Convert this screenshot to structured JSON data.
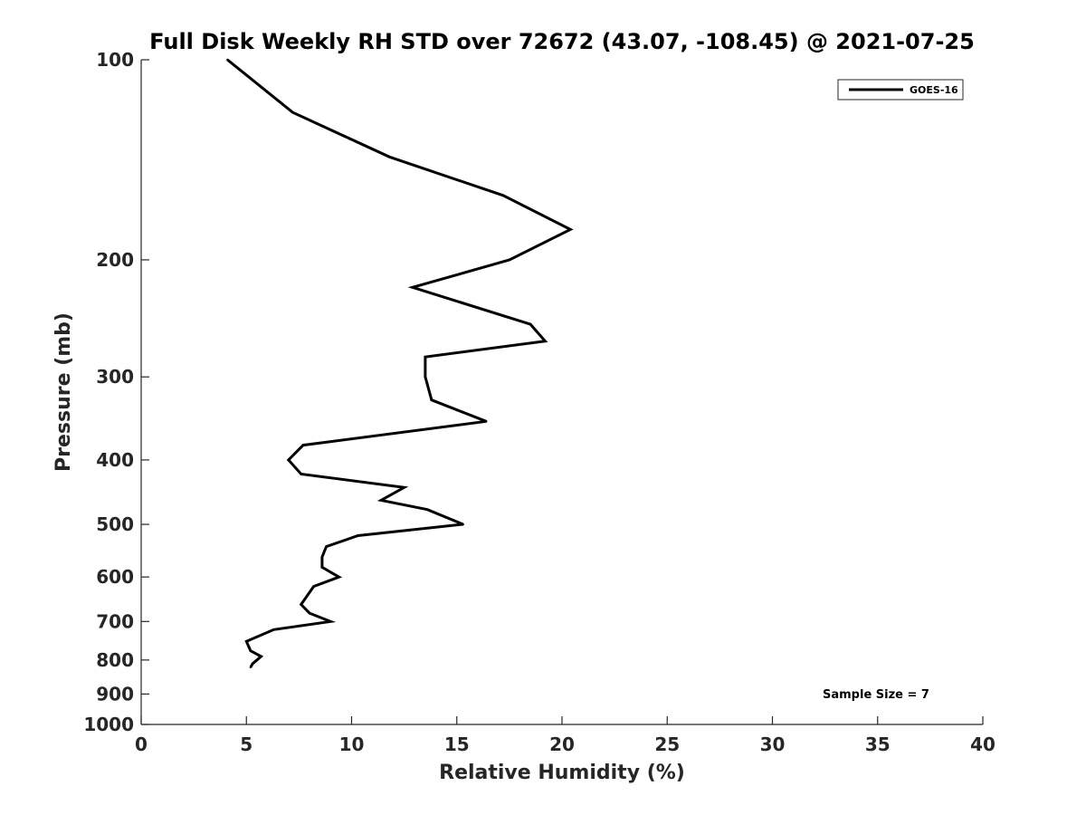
{
  "chart_data": {
    "type": "line",
    "title": "Full Disk Weekly RH STD over 72672 (43.07, -108.45) @ 2021-07-25",
    "xlabel": "Relative Humidity (%)",
    "ylabel": "Pressure (mb)",
    "xlim": [
      0,
      40
    ],
    "ylim": [
      100,
      1000
    ],
    "y_scale": "log",
    "y_reversed": true,
    "grid": false,
    "legend_position": "top-right",
    "x_ticks": [
      "0",
      "5",
      "10",
      "15",
      "20",
      "25",
      "30",
      "35",
      "40"
    ],
    "y_ticks": [
      "100",
      "200",
      "300",
      "400",
      "500",
      "600",
      "700",
      "800",
      "900",
      "1000"
    ],
    "series": [
      {
        "name": "GOES-16",
        "color": "#000000",
        "points": [
          {
            "x": 4.1,
            "y": 100
          },
          {
            "x": 7.2,
            "y": 120
          },
          {
            "x": 11.8,
            "y": 140
          },
          {
            "x": 17.2,
            "y": 160
          },
          {
            "x": 20.4,
            "y": 180
          },
          {
            "x": 17.5,
            "y": 200
          },
          {
            "x": 12.9,
            "y": 220
          },
          {
            "x": 18.5,
            "y": 250
          },
          {
            "x": 19.2,
            "y": 265
          },
          {
            "x": 13.5,
            "y": 280
          },
          {
            "x": 13.5,
            "y": 300
          },
          {
            "x": 13.8,
            "y": 325
          },
          {
            "x": 16.4,
            "y": 350
          },
          {
            "x": 7.7,
            "y": 380
          },
          {
            "x": 7.0,
            "y": 400
          },
          {
            "x": 7.6,
            "y": 420
          },
          {
            "x": 12.5,
            "y": 440
          },
          {
            "x": 11.4,
            "y": 460
          },
          {
            "x": 13.6,
            "y": 475
          },
          {
            "x": 15.3,
            "y": 500
          },
          {
            "x": 10.3,
            "y": 520
          },
          {
            "x": 8.8,
            "y": 540
          },
          {
            "x": 8.6,
            "y": 560
          },
          {
            "x": 8.6,
            "y": 580
          },
          {
            "x": 9.4,
            "y": 600
          },
          {
            "x": 8.2,
            "y": 620
          },
          {
            "x": 7.6,
            "y": 660
          },
          {
            "x": 8.0,
            "y": 680
          },
          {
            "x": 9.0,
            "y": 700
          },
          {
            "x": 6.3,
            "y": 720
          },
          {
            "x": 5.0,
            "y": 750
          },
          {
            "x": 5.2,
            "y": 775
          },
          {
            "x": 5.7,
            "y": 790
          },
          {
            "x": 5.3,
            "y": 810
          },
          {
            "x": 5.2,
            "y": 820
          }
        ]
      }
    ],
    "legend": [
      {
        "label": "GOES-16",
        "color": "#000000"
      }
    ],
    "annotation": "Sample Size = 7"
  }
}
